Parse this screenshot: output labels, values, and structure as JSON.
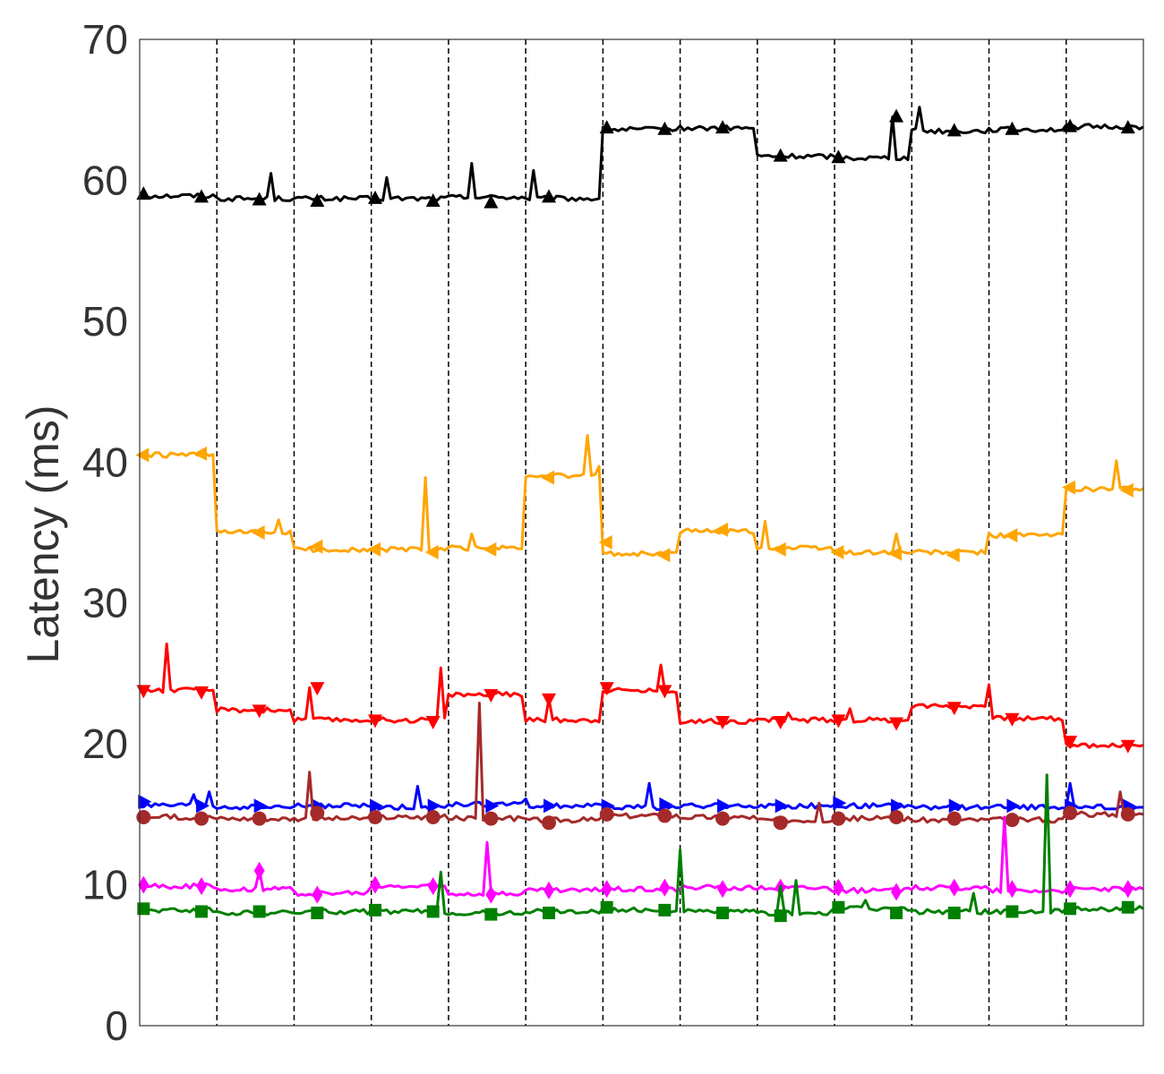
{
  "chart_data": {
    "type": "line",
    "title": "",
    "xlabel": "",
    "ylabel": "Latency (ms)",
    "xlim": [
      0,
      130
    ],
    "ylim": [
      0,
      70
    ],
    "yticks": [
      0,
      10,
      20,
      30,
      40,
      50,
      60,
      70
    ],
    "grid": "vertical-dashed",
    "vlines": [
      10,
      20,
      30,
      40,
      50,
      60,
      70,
      80,
      90,
      100,
      110,
      120
    ],
    "legend": "none",
    "series": [
      {
        "color": "#000000",
        "marker": "triangle-up",
        "segments": [
          [
            0,
            10,
            58.9
          ],
          [
            10,
            20,
            58.7
          ],
          [
            20,
            30,
            58.7
          ],
          [
            30,
            40,
            58.7
          ],
          [
            40,
            50,
            58.8
          ],
          [
            50,
            60,
            58.7
          ],
          [
            60,
            70,
            63.6
          ],
          [
            70,
            80,
            63.7
          ],
          [
            80,
            90,
            61.7
          ],
          [
            90,
            100,
            61.6
          ],
          [
            100,
            110,
            63.5
          ],
          [
            110,
            120,
            63.6
          ],
          [
            120,
            130,
            63.8
          ]
        ],
        "spikes": [
          [
            17,
            60.5
          ],
          [
            32,
            60.2
          ],
          [
            43,
            61.2
          ],
          [
            51,
            60.7
          ],
          [
            97.5,
            64.5
          ],
          [
            101,
            65.2
          ]
        ],
        "markers": [
          [
            0.5,
            59.0
          ],
          [
            8,
            58.8
          ],
          [
            15.5,
            58.6
          ],
          [
            23,
            58.5
          ],
          [
            30.5,
            58.7
          ],
          [
            38,
            58.5
          ],
          [
            45.5,
            58.4
          ],
          [
            53,
            58.8
          ],
          [
            60.5,
            63.7
          ],
          [
            68,
            63.6
          ],
          [
            75.5,
            63.7
          ],
          [
            83,
            61.7
          ],
          [
            90.5,
            61.6
          ],
          [
            98,
            64.5
          ],
          [
            105.5,
            63.5
          ],
          [
            113,
            63.6
          ],
          [
            120.5,
            63.8
          ],
          [
            128,
            63.7
          ]
        ]
      },
      {
        "color": "#FFA500",
        "marker": "triangle-left",
        "segments": [
          [
            0,
            10,
            40.5
          ],
          [
            10,
            20,
            35.0
          ],
          [
            20,
            30,
            33.8
          ],
          [
            30,
            40,
            33.8
          ],
          [
            40,
            50,
            33.9
          ],
          [
            50,
            60,
            39.0
          ],
          [
            60,
            70,
            33.5
          ],
          [
            70,
            80,
            35.1
          ],
          [
            80,
            90,
            33.9
          ],
          [
            90,
            100,
            33.6
          ],
          [
            100,
            110,
            33.6
          ],
          [
            110,
            120,
            34.8
          ],
          [
            120,
            130,
            38.1
          ]
        ],
        "spikes": [
          [
            18,
            35.9
          ],
          [
            37,
            38.9
          ],
          [
            43,
            34.9
          ],
          [
            58,
            41.9
          ],
          [
            59.5,
            39.7
          ],
          [
            81,
            35.8
          ],
          [
            98,
            34.9
          ],
          [
            126.5,
            40.1
          ]
        ],
        "markers": [
          [
            0.5,
            40.5
          ],
          [
            8,
            40.6
          ],
          [
            15.5,
            35.0
          ],
          [
            23,
            34.0
          ],
          [
            30.5,
            33.8
          ],
          [
            38,
            33.6
          ],
          [
            45.5,
            33.8
          ],
          [
            53,
            38.9
          ],
          [
            60.5,
            34.3
          ],
          [
            68,
            33.4
          ],
          [
            75.5,
            35.2
          ],
          [
            83,
            33.8
          ],
          [
            90.5,
            33.6
          ],
          [
            98,
            33.5
          ],
          [
            105.5,
            33.4
          ],
          [
            113,
            34.8
          ],
          [
            120.5,
            38.2
          ],
          [
            128,
            38.0
          ]
        ]
      },
      {
        "color": "#FF0000",
        "marker": "triangle-down",
        "segments": [
          [
            0,
            10,
            23.8
          ],
          [
            10,
            20,
            22.4
          ],
          [
            20,
            30,
            21.7
          ],
          [
            30,
            40,
            21.7
          ],
          [
            40,
            50,
            23.5
          ],
          [
            50,
            60,
            21.7
          ],
          [
            60,
            70,
            23.8
          ],
          [
            70,
            80,
            21.6
          ],
          [
            80,
            90,
            21.7
          ],
          [
            90,
            100,
            21.7
          ],
          [
            100,
            110,
            22.7
          ],
          [
            110,
            120,
            21.8
          ],
          [
            120,
            130,
            19.9
          ]
        ],
        "spikes": [
          [
            3.5,
            27.1
          ],
          [
            22,
            24.0
          ],
          [
            39,
            25.4
          ],
          [
            53,
            23.2
          ],
          [
            67.5,
            25.6
          ],
          [
            84,
            22.2
          ],
          [
            92,
            22.5
          ],
          [
            110,
            24.2
          ],
          [
            130,
            21.0
          ]
        ],
        "markers": [
          [
            0.5,
            23.8
          ],
          [
            8,
            23.7
          ],
          [
            15.5,
            22.4
          ],
          [
            23,
            24.0
          ],
          [
            30.5,
            21.7
          ],
          [
            38,
            21.6
          ],
          [
            45.5,
            23.5
          ],
          [
            53,
            23.2
          ],
          [
            60.5,
            24.0
          ],
          [
            68,
            23.8
          ],
          [
            75.5,
            21.6
          ],
          [
            83,
            21.6
          ],
          [
            90.5,
            21.7
          ],
          [
            98,
            21.5
          ],
          [
            105.5,
            22.6
          ],
          [
            113,
            21.8
          ],
          [
            120.5,
            20.2
          ],
          [
            128,
            19.9
          ]
        ]
      },
      {
        "color": "#0000FF",
        "marker": "triangle-right",
        "segments": [
          [
            0,
            10,
            15.6
          ],
          [
            10,
            20,
            15.5
          ],
          [
            20,
            30,
            15.6
          ],
          [
            30,
            40,
            15.5
          ],
          [
            40,
            50,
            15.7
          ],
          [
            50,
            60,
            15.6
          ],
          [
            60,
            70,
            15.5
          ],
          [
            70,
            80,
            15.6
          ],
          [
            80,
            90,
            15.6
          ],
          [
            90,
            100,
            15.6
          ],
          [
            100,
            110,
            15.5
          ],
          [
            110,
            120,
            15.5
          ],
          [
            120,
            130,
            15.5
          ]
        ],
        "spikes": [
          [
            7,
            16.4
          ],
          [
            9,
            16.6
          ],
          [
            36,
            17.0
          ],
          [
            50,
            16.1
          ],
          [
            66,
            17.2
          ],
          [
            120.5,
            17.2
          ]
        ],
        "markers": [
          [
            0.5,
            15.9
          ],
          [
            8,
            15.6
          ],
          [
            15.5,
            15.6
          ],
          [
            23,
            15.6
          ],
          [
            30.5,
            15.6
          ],
          [
            38,
            15.6
          ],
          [
            45.5,
            15.6
          ],
          [
            53,
            15.6
          ],
          [
            60.5,
            15.6
          ],
          [
            68,
            15.7
          ],
          [
            75.5,
            15.6
          ],
          [
            83,
            15.6
          ],
          [
            90.5,
            15.8
          ],
          [
            98,
            15.6
          ],
          [
            105.5,
            15.6
          ],
          [
            113,
            15.6
          ],
          [
            120.5,
            15.6
          ],
          [
            128,
            15.6
          ]
        ]
      },
      {
        "color": "#A52A2A",
        "marker": "circle",
        "segments": [
          [
            0,
            10,
            14.8
          ],
          [
            10,
            20,
            14.7
          ],
          [
            20,
            30,
            14.7
          ],
          [
            30,
            40,
            14.8
          ],
          [
            40,
            50,
            14.7
          ],
          [
            50,
            60,
            14.6
          ],
          [
            60,
            70,
            14.9
          ],
          [
            70,
            80,
            14.8
          ],
          [
            80,
            90,
            14.6
          ],
          [
            90,
            100,
            14.7
          ],
          [
            100,
            110,
            14.6
          ],
          [
            110,
            120,
            14.6
          ],
          [
            120,
            130,
            15.0
          ]
        ],
        "spikes": [
          [
            22,
            18.0
          ],
          [
            44,
            22.9
          ],
          [
            88,
            15.8
          ],
          [
            127,
            16.6
          ]
        ],
        "markers": [
          [
            0.5,
            14.8
          ],
          [
            8,
            14.7
          ],
          [
            15.5,
            14.7
          ],
          [
            23,
            15.1
          ],
          [
            30.5,
            14.8
          ],
          [
            38,
            14.8
          ],
          [
            45.5,
            14.7
          ],
          [
            53,
            14.4
          ],
          [
            60.5,
            15.0
          ],
          [
            68,
            14.9
          ],
          [
            75.5,
            14.7
          ],
          [
            83,
            14.4
          ],
          [
            90.5,
            14.7
          ],
          [
            98,
            14.8
          ],
          [
            105.5,
            14.7
          ],
          [
            113,
            14.6
          ],
          [
            120.5,
            15.1
          ],
          [
            128,
            15.0
          ]
        ]
      },
      {
        "color": "#FF00FF",
        "marker": "diamond",
        "segments": [
          [
            0,
            10,
            9.9
          ],
          [
            10,
            20,
            9.7
          ],
          [
            20,
            30,
            9.4
          ],
          [
            30,
            40,
            9.9
          ],
          [
            40,
            50,
            9.4
          ],
          [
            50,
            60,
            9.6
          ],
          [
            60,
            70,
            9.7
          ],
          [
            70,
            80,
            9.8
          ],
          [
            80,
            90,
            9.8
          ],
          [
            90,
            100,
            9.6
          ],
          [
            100,
            110,
            9.8
          ],
          [
            110,
            120,
            9.6
          ],
          [
            120,
            130,
            9.7
          ]
        ],
        "spikes": [
          [
            15.5,
            11.0
          ],
          [
            45,
            13.0
          ],
          [
            112,
            14.8
          ]
        ],
        "markers": [
          [
            0.5,
            10.0
          ],
          [
            8,
            9.9
          ],
          [
            15.5,
            11.0
          ],
          [
            23,
            9.3
          ],
          [
            30.5,
            10.0
          ],
          [
            38,
            9.9
          ],
          [
            45.5,
            9.3
          ],
          [
            53,
            9.6
          ],
          [
            60.5,
            9.7
          ],
          [
            68,
            9.8
          ],
          [
            75.5,
            9.7
          ],
          [
            83,
            9.8
          ],
          [
            90.5,
            9.8
          ],
          [
            98,
            9.5
          ],
          [
            105.5,
            9.8
          ],
          [
            113,
            9.7
          ],
          [
            120.5,
            9.7
          ],
          [
            128,
            9.7
          ]
        ]
      },
      {
        "color": "#008000",
        "marker": "square",
        "segments": [
          [
            0,
            10,
            8.2
          ],
          [
            10,
            20,
            8.0
          ],
          [
            20,
            30,
            8.1
          ],
          [
            30,
            40,
            8.1
          ],
          [
            40,
            50,
            8.0
          ],
          [
            50,
            60,
            8.1
          ],
          [
            60,
            70,
            8.2
          ],
          [
            70,
            80,
            8.1
          ],
          [
            80,
            90,
            8.0
          ],
          [
            90,
            100,
            8.3
          ],
          [
            100,
            110,
            8.1
          ],
          [
            110,
            120,
            8.1
          ],
          [
            120,
            130,
            8.3
          ]
        ],
        "spikes": [
          [
            39,
            10.9
          ],
          [
            70,
            12.5
          ],
          [
            83,
            9.9
          ],
          [
            85,
            10.3
          ],
          [
            94,
            8.9
          ],
          [
            108,
            9.4
          ],
          [
            117.5,
            17.8
          ]
        ],
        "markers": [
          [
            0.5,
            8.3
          ],
          [
            8,
            8.1
          ],
          [
            15.5,
            8.1
          ],
          [
            23,
            8.0
          ],
          [
            30.5,
            8.2
          ],
          [
            38,
            8.1
          ],
          [
            45.5,
            7.9
          ],
          [
            53,
            8.0
          ],
          [
            60.5,
            8.4
          ],
          [
            68,
            8.2
          ],
          [
            75.5,
            8.0
          ],
          [
            83,
            7.8
          ],
          [
            90.5,
            8.4
          ],
          [
            98,
            8.0
          ],
          [
            105.5,
            8.0
          ],
          [
            113,
            8.1
          ],
          [
            120.5,
            8.3
          ],
          [
            128,
            8.4
          ]
        ]
      }
    ]
  }
}
